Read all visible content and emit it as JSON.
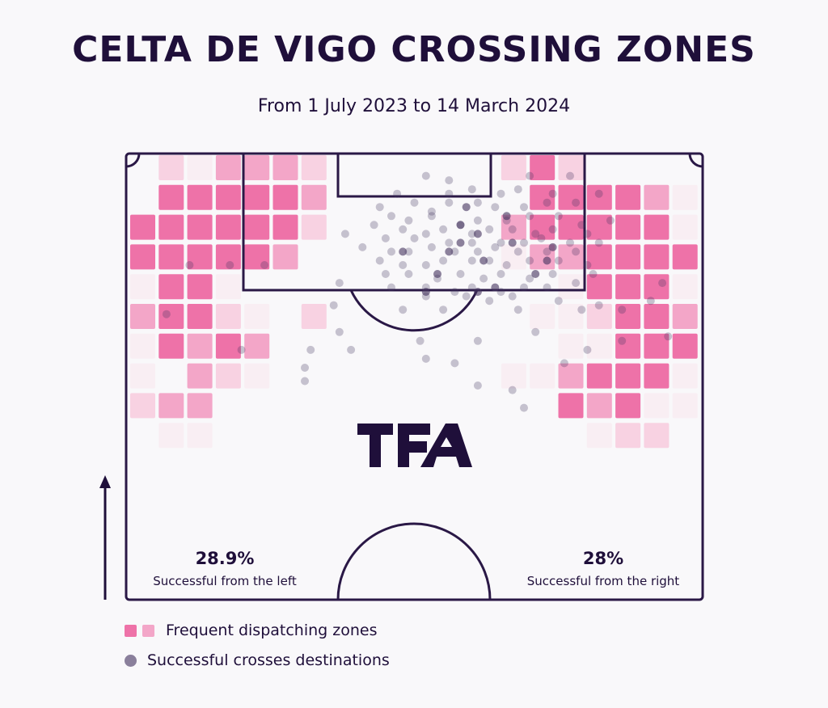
{
  "header": {
    "title": "CELTA DE VIGO CROSSING ZONES",
    "subtitle": "From 1 July 2023 to 14 March 2024"
  },
  "logo": {
    "text": "TFA"
  },
  "stats": {
    "left": {
      "value": "28.9%",
      "label": "Successful from the left"
    },
    "right": {
      "value": "28%",
      "label": "Successful from the right"
    }
  },
  "legend": {
    "zones_label": "Frequent dispatching zones",
    "destinations_label": "Successful crosses destinations"
  },
  "colors": {
    "text": "#1f0f3a",
    "line": "#2a1846",
    "background": "#f9f8fa",
    "zone_level_1": "#f9eef3",
    "zone_level_2": "#f8d2e2",
    "zone_level_3": "#f3a6c8",
    "zone_level_4": "#ee72a8",
    "dot": "#42325e"
  },
  "chart_data": {
    "type": "heatmap",
    "description_grid": "Crossing origin zones on a half-pitch grid: 20 columns by 10 rows, row 0 at the goal line; value 0 = no zone, 1..4 = increasing crossing frequency",
    "zones": [
      [
        0,
        2,
        1,
        3,
        3,
        3,
        2,
        0,
        0,
        0,
        0,
        0,
        0,
        2,
        4,
        2,
        0,
        0,
        0,
        0
      ],
      [
        0,
        4,
        4,
        4,
        4,
        4,
        3,
        0,
        0,
        0,
        0,
        0,
        0,
        0,
        4,
        4,
        4,
        4,
        3,
        1
      ],
      [
        4,
        4,
        4,
        4,
        4,
        4,
        2,
        0,
        0,
        0,
        0,
        0,
        0,
        3,
        4,
        4,
        4,
        4,
        4,
        1
      ],
      [
        4,
        4,
        4,
        4,
        4,
        3,
        0,
        0,
        0,
        0,
        0,
        0,
        0,
        1,
        3,
        3,
        4,
        4,
        4,
        4
      ],
      [
        1,
        4,
        4,
        1,
        0,
        0,
        0,
        0,
        0,
        0,
        0,
        0,
        0,
        0,
        0,
        1,
        4,
        4,
        4,
        1
      ],
      [
        3,
        4,
        4,
        2,
        1,
        0,
        2,
        0,
        0,
        0,
        0,
        0,
        0,
        0,
        1,
        1,
        2,
        4,
        4,
        3
      ],
      [
        1,
        4,
        3,
        4,
        3,
        0,
        0,
        0,
        0,
        0,
        0,
        0,
        0,
        0,
        0,
        1,
        1,
        4,
        4,
        4
      ],
      [
        1,
        0,
        3,
        2,
        1,
        0,
        0,
        0,
        0,
        0,
        0,
        0,
        0,
        1,
        1,
        3,
        4,
        4,
        4,
        1
      ],
      [
        2,
        3,
        3,
        0,
        0,
        0,
        0,
        0,
        0,
        0,
        0,
        0,
        0,
        0,
        0,
        4,
        3,
        4,
        1,
        1
      ],
      [
        0,
        1,
        1,
        0,
        0,
        0,
        0,
        0,
        0,
        0,
        0,
        0,
        0,
        0,
        0,
        0,
        1,
        2,
        2,
        0
      ]
    ],
    "destinations_pixels_note": "Successful cross destinations are drawn as semi-transparent dots; positions are estimated (pitch-relative, x 0-100 across width, y 0-100 from goal line to halfway line)",
    "destinations": [
      [
        52,
        5
      ],
      [
        56,
        6
      ],
      [
        70,
        5
      ],
      [
        77,
        5
      ],
      [
        56,
        9
      ],
      [
        60,
        8
      ],
      [
        65,
        9
      ],
      [
        68,
        8
      ],
      [
        74,
        9
      ],
      [
        47,
        9
      ],
      [
        50,
        11
      ],
      [
        53,
        13
      ],
      [
        56,
        11
      ],
      [
        61,
        11
      ],
      [
        64,
        12
      ],
      [
        69,
        12
      ],
      [
        73,
        11
      ],
      [
        78,
        11
      ],
      [
        82,
        9
      ],
      [
        44,
        12
      ],
      [
        46,
        14
      ],
      [
        49,
        15
      ],
      [
        53,
        14
      ],
      [
        58,
        16
      ],
      [
        61,
        15
      ],
      [
        66,
        15
      ],
      [
        70,
        14
      ],
      [
        75,
        14
      ],
      [
        79,
        16
      ],
      [
        84,
        15
      ],
      [
        43,
        16
      ],
      [
        48,
        17
      ],
      [
        52,
        18
      ],
      [
        55,
        17
      ],
      [
        60,
        18
      ],
      [
        63,
        17
      ],
      [
        67,
        17
      ],
      [
        71,
        18
      ],
      [
        74,
        17
      ],
      [
        80,
        18
      ],
      [
        38,
        18
      ],
      [
        45,
        19
      ],
      [
        50,
        19
      ],
      [
        56,
        20
      ],
      [
        60,
        20
      ],
      [
        65,
        20
      ],
      [
        69,
        20
      ],
      [
        72,
        19
      ],
      [
        77,
        20
      ],
      [
        82,
        20
      ],
      [
        41,
        21
      ],
      [
        46,
        22
      ],
      [
        49,
        22
      ],
      [
        53,
        21
      ],
      [
        57,
        22
      ],
      [
        61,
        22
      ],
      [
        64,
        21
      ],
      [
        68,
        22
      ],
      [
        73,
        22
      ],
      [
        78,
        22
      ],
      [
        44,
        24
      ],
      [
        48,
        25
      ],
      [
        52,
        25
      ],
      [
        55,
        24
      ],
      [
        60,
        24
      ],
      [
        63,
        24
      ],
      [
        66,
        25
      ],
      [
        70,
        24
      ],
      [
        75,
        24
      ],
      [
        80,
        25
      ],
      [
        45,
        27
      ],
      [
        49,
        27
      ],
      [
        54,
        28
      ],
      [
        58,
        27
      ],
      [
        62,
        28
      ],
      [
        65,
        27
      ],
      [
        70,
        28
      ],
      [
        74,
        27
      ],
      [
        81,
        27
      ],
      [
        46,
        30
      ],
      [
        52,
        30
      ],
      [
        57,
        31
      ],
      [
        60,
        30
      ],
      [
        65,
        31
      ],
      [
        69,
        30
      ],
      [
        73,
        30
      ],
      [
        78,
        29
      ],
      [
        52,
        32
      ],
      [
        59,
        32
      ],
      [
        63,
        33
      ],
      [
        67,
        32
      ],
      [
        75,
        33
      ],
      [
        82,
        34
      ],
      [
        36,
        34
      ],
      [
        91,
        33
      ],
      [
        48,
        35
      ],
      [
        55,
        35
      ],
      [
        68,
        35
      ],
      [
        79,
        35
      ],
      [
        86,
        35
      ],
      [
        37,
        40
      ],
      [
        71,
        40
      ],
      [
        51,
        42
      ],
      [
        61,
        42
      ],
      [
        86,
        42
      ],
      [
        39,
        44
      ],
      [
        80,
        44
      ],
      [
        52,
        46
      ],
      [
        57,
        47
      ],
      [
        76,
        47
      ],
      [
        94,
        41
      ],
      [
        20,
        44
      ],
      [
        32,
        44
      ],
      [
        31,
        48
      ],
      [
        18,
        25
      ],
      [
        24,
        25
      ],
      [
        11,
        25
      ],
      [
        37,
        29
      ],
      [
        7,
        36
      ],
      [
        93,
        29
      ],
      [
        67,
        53
      ],
      [
        31,
        51
      ],
      [
        61,
        52
      ],
      [
        69,
        57
      ]
    ],
    "dark_destinations": [
      [
        58,
        16
      ],
      [
        61,
        18
      ],
      [
        58,
        20
      ],
      [
        56,
        22
      ],
      [
        67,
        20
      ],
      [
        62,
        24
      ],
      [
        74,
        21
      ],
      [
        54,
        27
      ],
      [
        64,
        30
      ],
      [
        52,
        31
      ],
      [
        71,
        27
      ],
      [
        59,
        12
      ],
      [
        66,
        14
      ],
      [
        48,
        22
      ],
      [
        73,
        24
      ],
      [
        61,
        31
      ]
    ]
  }
}
